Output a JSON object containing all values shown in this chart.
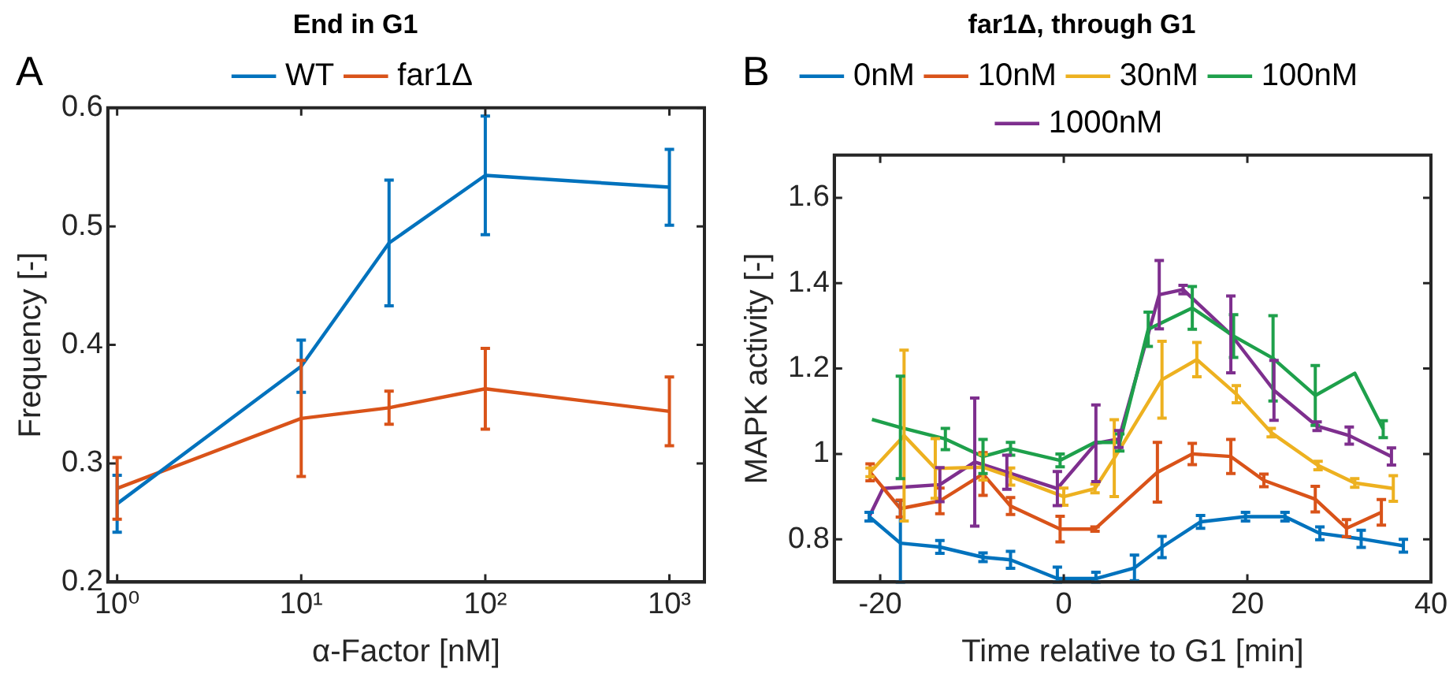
{
  "chart_data": [
    {
      "type": "line",
      "title": "End in G1",
      "xlabel": "α-Factor [nM]",
      "ylabel": "Frequency [-]",
      "log": "x",
      "x": [
        1,
        10,
        30,
        100,
        1000
      ],
      "series": [
        {
          "name": "WT",
          "color": "#0072bd",
          "values": [
            0.266,
            0.382,
            0.486,
            0.543,
            0.533
          ],
          "errors": [
            0.024,
            0.022,
            0.053,
            0.05,
            0.032
          ]
        },
        {
          "name": "far1Δ",
          "color": "#d95319",
          "values": [
            0.279,
            0.338,
            0.347,
            0.363,
            0.344
          ],
          "errors": [
            0.026,
            0.049,
            0.014,
            0.034,
            0.029
          ]
        }
      ],
      "xlim": [
        0.89,
        1550
      ],
      "xticks": [
        {
          "value": 1,
          "label": "10⁰"
        },
        {
          "value": 10,
          "label": "10¹"
        },
        {
          "value": 100,
          "label": "10²"
        },
        {
          "value": 1000,
          "label": "10³"
        }
      ],
      "ylim": [
        0.2,
        0.6
      ],
      "yticks": [
        0.2,
        0.3,
        0.4,
        0.5,
        0.6
      ],
      "grid": false,
      "legend": "top",
      "marker": "none",
      "line_style": "solid",
      "annotations": [
        "A"
      ]
    },
    {
      "type": "line",
      "title": "far1Δ, through G1",
      "xlabel": "Time relative to G1 [min]",
      "ylabel": "MAPK activity [-]",
      "series": [
        {
          "name": "0nM",
          "color": "#0072bd",
          "x": [
            -21.2,
            -17.8,
            -13.5,
            -8.8,
            -5.8,
            -0.7,
            3.5,
            7.7,
            10.7,
            14.9,
            19.8,
            24.1,
            27.9,
            32.4,
            37.0
          ],
          "values": [
            0.853,
            0.791,
            0.782,
            0.758,
            0.752,
            0.708,
            0.708,
            0.733,
            0.782,
            0.841,
            0.853,
            0.853,
            0.814,
            0.801,
            0.785
          ],
          "errors": [
            0.01,
            [
              0.7,
              0.891
            ],
            0.015,
            0.01,
            0.02,
            [
              0.7,
              0.735
            ],
            [
              0.7,
              0.723
            ],
            0.03,
            0.025,
            0.015,
            0.01,
            0.01,
            0.015,
            0.02,
            0.015
          ]
        },
        {
          "name": "10nM",
          "color": "#d95319",
          "x": [
            -21.1,
            -17.8,
            -13.5,
            -8.8,
            -5.8,
            -0.4,
            3.4,
            10.2,
            14.0,
            18.2,
            21.8,
            27.4,
            30.8,
            34.6
          ],
          "values": [
            0.957,
            0.872,
            0.89,
            0.953,
            0.878,
            0.824,
            0.824,
            0.957,
            1.0,
            0.994,
            0.938,
            0.894,
            0.826,
            0.863
          ],
          "errors": [
            0.02,
            0.02,
            0.03,
            0.05,
            0.02,
            0.03,
            0.005,
            0.07,
            0.025,
            0.04,
            0.015,
            0.03,
            0.02,
            0.03
          ]
        },
        {
          "name": "30nM",
          "color": "#edb120",
          "x": [
            -21.1,
            -17.4,
            -14.0,
            -8.8,
            -5.8,
            0,
            3.4,
            5.5,
            10.7,
            14.5,
            18.8,
            22.6,
            27.7,
            31.7,
            35.9
          ],
          "values": [
            0.957,
            1.043,
            0.966,
            0.969,
            0.947,
            0.9,
            0.919,
            0.99,
            1.174,
            1.221,
            1.14,
            1.05,
            0.973,
            0.932,
            0.919
          ],
          "errors": [
            0.01,
            0.2,
            0.07,
            0.03,
            0.02,
            0.02,
            0.01,
            0.09,
            0.09,
            0.04,
            0.02,
            0.01,
            0.01,
            0.01,
            0.03
          ]
        },
        {
          "name": "100nM",
          "color": "#1ea04b",
          "x": [
            -20.9,
            -17.8,
            -12.9,
            -8.8,
            -5.8,
            -0.4,
            3.4,
            6.1,
            9.2,
            14.0,
            18.5,
            22.8,
            27.4,
            31.7,
            34.8
          ],
          "values": [
            1.081,
            1.062,
            1.035,
            0.994,
            1.012,
            0.985,
            1.027,
            1.027,
            1.292,
            1.342,
            1.276,
            1.224,
            1.137,
            1.189,
            1.058
          ],
          "errors": [
            null,
            0.12,
            0.025,
            0.04,
            0.015,
            0.015,
            null,
            0.02,
            0.04,
            0.05,
            0.05,
            0.1,
            0.07,
            null,
            0.02
          ]
        },
        {
          "name": "1000nM",
          "color": "#7e2f8e",
          "x": [
            -21.2,
            -19.7,
            -13.5,
            -9.7,
            -6.2,
            -0.7,
            3.5,
            6.0,
            10.4,
            13.0,
            18.2,
            22.9,
            27.6,
            31.1,
            35.7
          ],
          "values": [
            0.853,
            0.919,
            0.928,
            0.981,
            0.957,
            0.919,
            1.025,
            1.035,
            1.373,
            1.385,
            1.28,
            1.149,
            1.065,
            1.043,
            0.994
          ],
          "errors": [
            null,
            null,
            0.04,
            0.15,
            0.04,
            0.04,
            0.09,
            0.02,
            0.08,
            0.01,
            0.09,
            0.07,
            0.01,
            0.02,
            0.02
          ]
        }
      ],
      "xlim": [
        -25,
        40
      ],
      "xticks": [
        -20,
        0,
        20,
        40
      ],
      "ylim": [
        0.7,
        1.7
      ],
      "yticks": [
        0.8,
        1,
        1.2,
        1.4,
        1.6
      ],
      "grid": false,
      "legend": "top",
      "line_style": "solid",
      "annotations": [
        "B"
      ]
    }
  ]
}
